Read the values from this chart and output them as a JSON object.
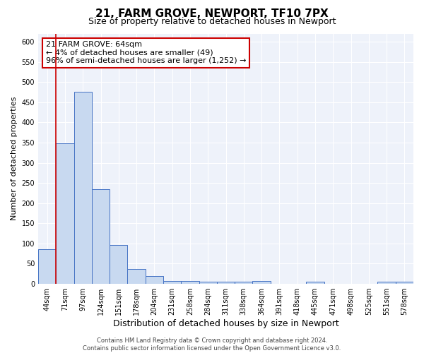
{
  "title": "21, FARM GROVE, NEWPORT, TF10 7PX",
  "subtitle": "Size of property relative to detached houses in Newport",
  "xlabel": "Distribution of detached houses by size in Newport",
  "ylabel": "Number of detached properties",
  "categories": [
    "44sqm",
    "71sqm",
    "97sqm",
    "124sqm",
    "151sqm",
    "178sqm",
    "204sqm",
    "231sqm",
    "258sqm",
    "284sqm",
    "311sqm",
    "338sqm",
    "364sqm",
    "391sqm",
    "418sqm",
    "445sqm",
    "471sqm",
    "498sqm",
    "525sqm",
    "551sqm",
    "578sqm"
  ],
  "values": [
    85,
    348,
    475,
    235,
    97,
    37,
    19,
    8,
    8,
    5,
    5,
    5,
    8,
    0,
    0,
    6,
    0,
    0,
    0,
    5,
    5
  ],
  "bar_color": "#c8d9f0",
  "bar_edge_color": "#4472c4",
  "annotation_box_text": "21 FARM GROVE: 64sqm\n← 4% of detached houses are smaller (49)\n96% of semi-detached houses are larger (1,252) →",
  "vline_color": "#cc0000",
  "vline_x_index": 1,
  "ylim": [
    0,
    620
  ],
  "yticks": [
    0,
    50,
    100,
    150,
    200,
    250,
    300,
    350,
    400,
    450,
    500,
    550,
    600
  ],
  "background_color": "#eef2fa",
  "grid_color": "#ffffff",
  "footer": "Contains HM Land Registry data © Crown copyright and database right 2024.\nContains public sector information licensed under the Open Government Licence v3.0.",
  "title_fontsize": 11,
  "subtitle_fontsize": 9,
  "xlabel_fontsize": 9,
  "ylabel_fontsize": 8,
  "annotation_fontsize": 8,
  "tick_fontsize": 7,
  "footer_fontsize": 6
}
